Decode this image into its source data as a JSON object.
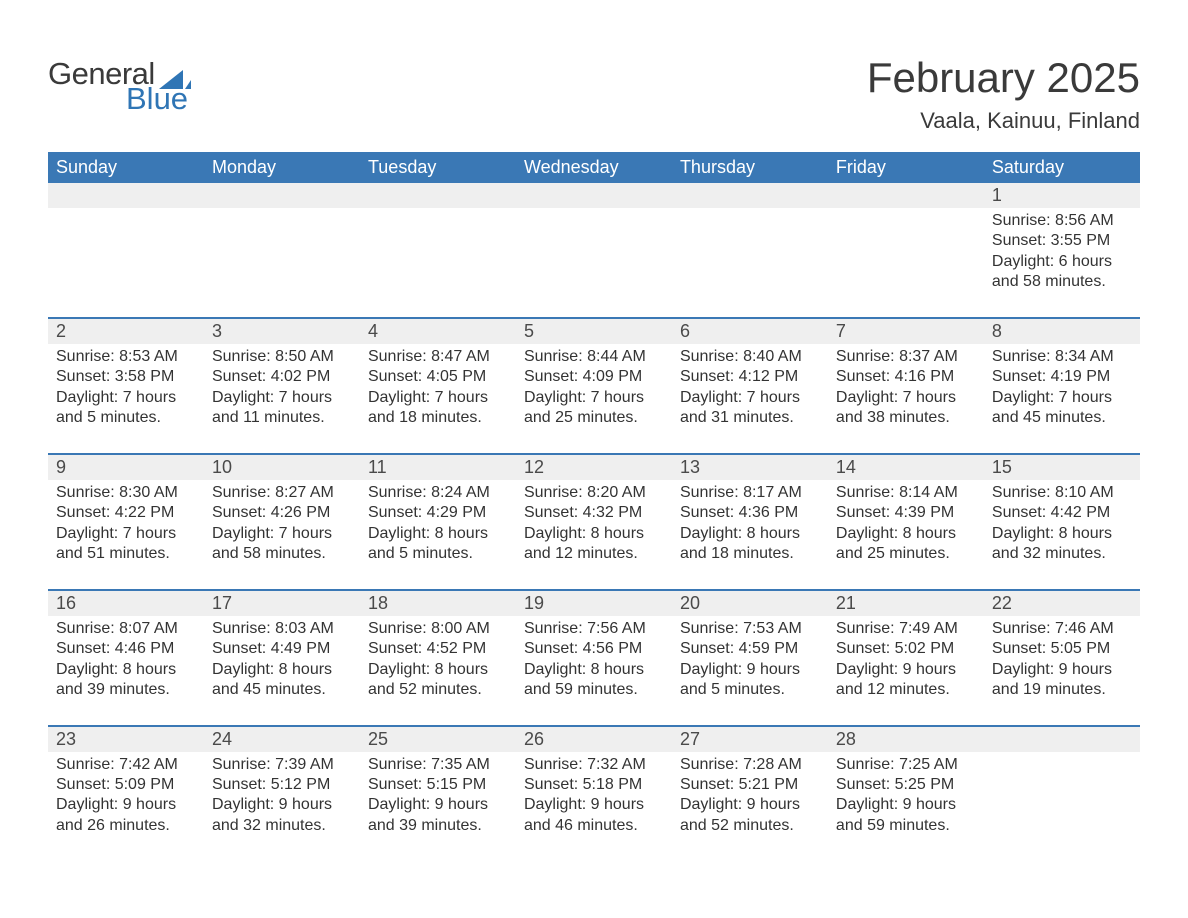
{
  "brand": {
    "word1": "General",
    "word2": "Blue",
    "sail_color": "#2f75b5",
    "text_gray": "#3a3a3a"
  },
  "title": "February 2025",
  "location": "Vaala, Kainuu, Finland",
  "theme": {
    "header_bg": "#3a78b5",
    "header_fg": "#ffffff",
    "row_divider": "#3a78b5",
    "daynum_bg": "#efefef",
    "daynum_fg": "#4a4a4a",
    "body_fg": "#333333",
    "page_bg": "#ffffff",
    "title_fontsize": 42,
    "location_fontsize": 22,
    "head_fontsize": 18,
    "daynum_fontsize": 18,
    "body_fontsize": 16
  },
  "week_labels": [
    "Sunday",
    "Monday",
    "Tuesday",
    "Wednesday",
    "Thursday",
    "Friday",
    "Saturday"
  ],
  "weeks": [
    [
      null,
      null,
      null,
      null,
      null,
      null,
      {
        "n": 1,
        "sunrise": "8:56 AM",
        "sunset": "3:55 PM",
        "daylight_l1": "Daylight: 6 hours",
        "daylight_l2": "and 58 minutes."
      }
    ],
    [
      {
        "n": 2,
        "sunrise": "8:53 AM",
        "sunset": "3:58 PM",
        "daylight_l1": "Daylight: 7 hours",
        "daylight_l2": "and 5 minutes."
      },
      {
        "n": 3,
        "sunrise": "8:50 AM",
        "sunset": "4:02 PM",
        "daylight_l1": "Daylight: 7 hours",
        "daylight_l2": "and 11 minutes."
      },
      {
        "n": 4,
        "sunrise": "8:47 AM",
        "sunset": "4:05 PM",
        "daylight_l1": "Daylight: 7 hours",
        "daylight_l2": "and 18 minutes."
      },
      {
        "n": 5,
        "sunrise": "8:44 AM",
        "sunset": "4:09 PM",
        "daylight_l1": "Daylight: 7 hours",
        "daylight_l2": "and 25 minutes."
      },
      {
        "n": 6,
        "sunrise": "8:40 AM",
        "sunset": "4:12 PM",
        "daylight_l1": "Daylight: 7 hours",
        "daylight_l2": "and 31 minutes."
      },
      {
        "n": 7,
        "sunrise": "8:37 AM",
        "sunset": "4:16 PM",
        "daylight_l1": "Daylight: 7 hours",
        "daylight_l2": "and 38 minutes."
      },
      {
        "n": 8,
        "sunrise": "8:34 AM",
        "sunset": "4:19 PM",
        "daylight_l1": "Daylight: 7 hours",
        "daylight_l2": "and 45 minutes."
      }
    ],
    [
      {
        "n": 9,
        "sunrise": "8:30 AM",
        "sunset": "4:22 PM",
        "daylight_l1": "Daylight: 7 hours",
        "daylight_l2": "and 51 minutes."
      },
      {
        "n": 10,
        "sunrise": "8:27 AM",
        "sunset": "4:26 PM",
        "daylight_l1": "Daylight: 7 hours",
        "daylight_l2": "and 58 minutes."
      },
      {
        "n": 11,
        "sunrise": "8:24 AM",
        "sunset": "4:29 PM",
        "daylight_l1": "Daylight: 8 hours",
        "daylight_l2": "and 5 minutes."
      },
      {
        "n": 12,
        "sunrise": "8:20 AM",
        "sunset": "4:32 PM",
        "daylight_l1": "Daylight: 8 hours",
        "daylight_l2": "and 12 minutes."
      },
      {
        "n": 13,
        "sunrise": "8:17 AM",
        "sunset": "4:36 PM",
        "daylight_l1": "Daylight: 8 hours",
        "daylight_l2": "and 18 minutes."
      },
      {
        "n": 14,
        "sunrise": "8:14 AM",
        "sunset": "4:39 PM",
        "daylight_l1": "Daylight: 8 hours",
        "daylight_l2": "and 25 minutes."
      },
      {
        "n": 15,
        "sunrise": "8:10 AM",
        "sunset": "4:42 PM",
        "daylight_l1": "Daylight: 8 hours",
        "daylight_l2": "and 32 minutes."
      }
    ],
    [
      {
        "n": 16,
        "sunrise": "8:07 AM",
        "sunset": "4:46 PM",
        "daylight_l1": "Daylight: 8 hours",
        "daylight_l2": "and 39 minutes."
      },
      {
        "n": 17,
        "sunrise": "8:03 AM",
        "sunset": "4:49 PM",
        "daylight_l1": "Daylight: 8 hours",
        "daylight_l2": "and 45 minutes."
      },
      {
        "n": 18,
        "sunrise": "8:00 AM",
        "sunset": "4:52 PM",
        "daylight_l1": "Daylight: 8 hours",
        "daylight_l2": "and 52 minutes."
      },
      {
        "n": 19,
        "sunrise": "7:56 AM",
        "sunset": "4:56 PM",
        "daylight_l1": "Daylight: 8 hours",
        "daylight_l2": "and 59 minutes."
      },
      {
        "n": 20,
        "sunrise": "7:53 AM",
        "sunset": "4:59 PM",
        "daylight_l1": "Daylight: 9 hours",
        "daylight_l2": "and 5 minutes."
      },
      {
        "n": 21,
        "sunrise": "7:49 AM",
        "sunset": "5:02 PM",
        "daylight_l1": "Daylight: 9 hours",
        "daylight_l2": "and 12 minutes."
      },
      {
        "n": 22,
        "sunrise": "7:46 AM",
        "sunset": "5:05 PM",
        "daylight_l1": "Daylight: 9 hours",
        "daylight_l2": "and 19 minutes."
      }
    ],
    [
      {
        "n": 23,
        "sunrise": "7:42 AM",
        "sunset": "5:09 PM",
        "daylight_l1": "Daylight: 9 hours",
        "daylight_l2": "and 26 minutes."
      },
      {
        "n": 24,
        "sunrise": "7:39 AM",
        "sunset": "5:12 PM",
        "daylight_l1": "Daylight: 9 hours",
        "daylight_l2": "and 32 minutes."
      },
      {
        "n": 25,
        "sunrise": "7:35 AM",
        "sunset": "5:15 PM",
        "daylight_l1": "Daylight: 9 hours",
        "daylight_l2": "and 39 minutes."
      },
      {
        "n": 26,
        "sunrise": "7:32 AM",
        "sunset": "5:18 PM",
        "daylight_l1": "Daylight: 9 hours",
        "daylight_l2": "and 46 minutes."
      },
      {
        "n": 27,
        "sunrise": "7:28 AM",
        "sunset": "5:21 PM",
        "daylight_l1": "Daylight: 9 hours",
        "daylight_l2": "and 52 minutes."
      },
      {
        "n": 28,
        "sunrise": "7:25 AM",
        "sunset": "5:25 PM",
        "daylight_l1": "Daylight: 9 hours",
        "daylight_l2": "and 59 minutes."
      },
      null
    ]
  ],
  "labels": {
    "sunrise_prefix": "Sunrise: ",
    "sunset_prefix": "Sunset: "
  }
}
